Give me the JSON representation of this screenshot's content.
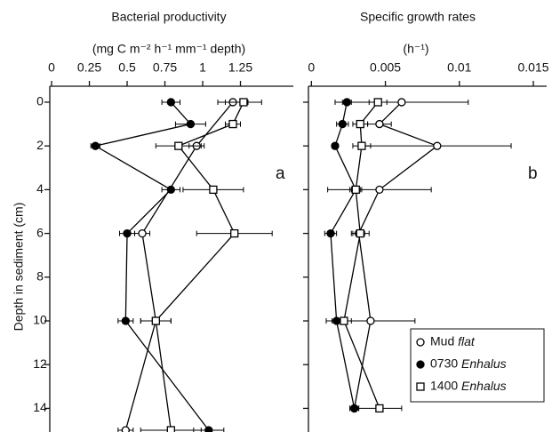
{
  "chart_data": [
    {
      "type": "line",
      "panel_label": "a",
      "title": "Bacterial productivity",
      "x_label": "(mg C m⁻² h⁻¹ mm⁻¹ depth)",
      "y_label": "Depth in sediment (cm)",
      "xlim": [
        -0.012,
        1.6
      ],
      "xticks": [
        0,
        0.25,
        0.5,
        {
          "value": 0.75,
          "label": "0.75"
        },
        1,
        1.25
      ],
      "ylim": [
        -0.73,
        15.08
      ],
      "yticks": [
        0,
        2,
        4,
        6,
        8,
        10,
        12,
        14
      ],
      "y_inverted": true,
      "series": [
        {
          "name": "Mud flat",
          "marker": "open-circle",
          "color": "#000000",
          "depth": [
            0,
            2,
            6,
            10,
            15
          ],
          "values": [
            1.2,
            0.96,
            0.6,
            0.69,
            0.49
          ],
          "errors": [
            0.1,
            0.05,
            0.05,
            0.1,
            0.05
          ]
        },
        {
          "name": "0730 Enhalus",
          "marker": "filled-circle",
          "color": "#000000",
          "depth": [
            0,
            1,
            2,
            4,
            6,
            10,
            15
          ],
          "values": [
            0.79,
            0.92,
            0.29,
            0.79,
            0.5,
            0.49,
            1.04
          ],
          "errors": [
            0.06,
            0.1,
            0.03,
            0.06,
            0.05,
            0.05,
            0.1
          ]
        },
        {
          "name": "1400 Enhalus",
          "marker": "open-square",
          "color": "#000000",
          "depth": [
            0,
            1,
            2,
            4,
            6,
            10,
            15
          ],
          "values": [
            1.27,
            1.2,
            0.84,
            1.07,
            1.21,
            0.69,
            0.79
          ],
          "errors": [
            0.12,
            0.05,
            0.15,
            0.2,
            0.25,
            0.1,
            0.2
          ]
        }
      ]
    },
    {
      "type": "line",
      "panel_label": "b",
      "title": "Specific growth rates",
      "x_label": "(h⁻¹)",
      "xlim": [
        -0.0002,
        0.0159
      ],
      "xticks": [
        0,
        0.005,
        0.01,
        0.015
      ],
      "ylim": [
        -0.73,
        15.08
      ],
      "yticks": [
        0,
        2,
        4,
        6,
        8,
        10,
        12,
        14
      ],
      "y_inverted": true,
      "legend": "lower right",
      "series": [
        {
          "name": "Mud flat",
          "marker": "open-circle",
          "color": "#000000",
          "depth": [
            0,
            1,
            2,
            4,
            6,
            10,
            14
          ],
          "values": [
            0.0061,
            0.0046,
            0.0085,
            0.0046,
            0.0032,
            0.004,
            0.0029
          ],
          "errors": [
            0.0045,
            0.0008,
            0.005,
            0.0035,
            0.0004,
            0.003,
            0.0003
          ]
        },
        {
          "name": "0730 Enhalus",
          "marker": "filled-circle",
          "color": "#000000",
          "depth": [
            0,
            1,
            2,
            4,
            6,
            10,
            14
          ],
          "values": [
            0.0024,
            0.0021,
            0.0016,
            0.003,
            0.0013,
            0.0017,
            0.0029
          ],
          "errors": [
            0.0003,
            0.0004,
            0.0002,
            0.0004,
            0.0004,
            0.0003,
            0.0003
          ]
        },
        {
          "name": "1400 Enhalus",
          "marker": "open-square",
          "color": "#000000",
          "depth": [
            0,
            1,
            2,
            4,
            6,
            10,
            14
          ],
          "values": [
            0.0045,
            0.0033,
            0.0034,
            0.003,
            0.0033,
            0.0022,
            0.0046
          ],
          "errors": [
            0.0006,
            0.0005,
            0.0006,
            0.0003,
            0.0006,
            0.0005,
            0.0015
          ]
        }
      ]
    }
  ]
}
